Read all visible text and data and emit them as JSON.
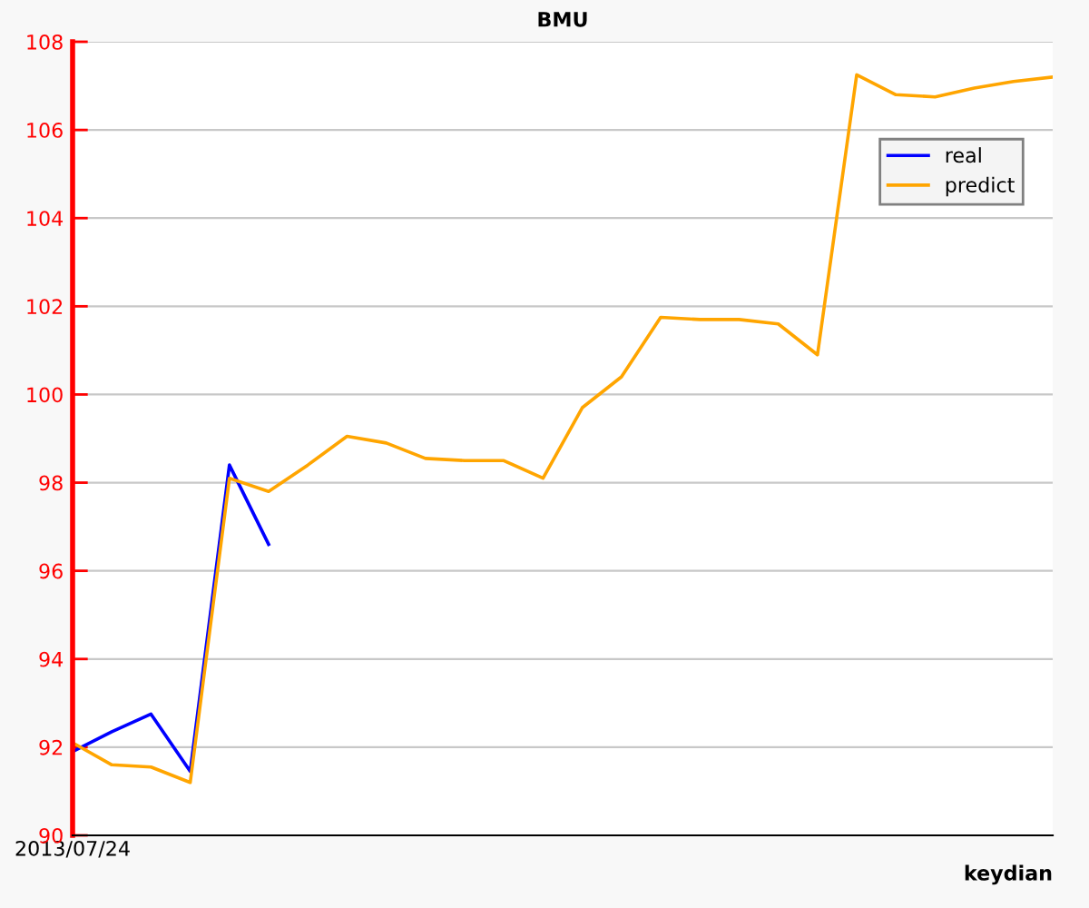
{
  "chart_data": {
    "type": "line",
    "title": "BMU",
    "xlabel": "keydian",
    "categories": [
      "2013/07/24",
      null,
      null,
      null,
      null,
      null,
      null,
      null,
      null,
      null,
      null,
      null,
      null,
      null,
      null,
      null,
      null,
      null,
      null,
      null,
      null,
      null,
      null,
      null,
      null,
      null
    ],
    "series": [
      {
        "name": "real",
        "color": "#0000ff",
        "values": [
          91.9,
          92.35,
          92.75,
          91.45,
          98.4,
          96.6,
          null,
          null,
          null,
          null,
          null,
          null,
          null,
          null,
          null,
          null,
          null,
          null,
          null,
          null,
          null,
          null,
          null,
          null,
          null,
          null
        ]
      },
      {
        "name": "predict",
        "color": "#ffa500",
        "values": [
          92.1,
          91.6,
          91.55,
          91.2,
          98.1,
          97.8,
          98.4,
          99.05,
          98.9,
          98.55,
          98.5,
          98.5,
          98.1,
          99.7,
          100.4,
          101.75,
          101.7,
          101.7,
          101.6,
          100.9,
          107.25,
          106.8,
          106.75,
          106.95,
          107.1,
          107.2
        ]
      }
    ],
    "ylim": [
      90,
      108
    ],
    "yticks": [
      90,
      92,
      94,
      96,
      98,
      100,
      102,
      104,
      106,
      108
    ],
    "grid": "y",
    "legend": "top right",
    "marker": "none",
    "line_style": "solid"
  }
}
